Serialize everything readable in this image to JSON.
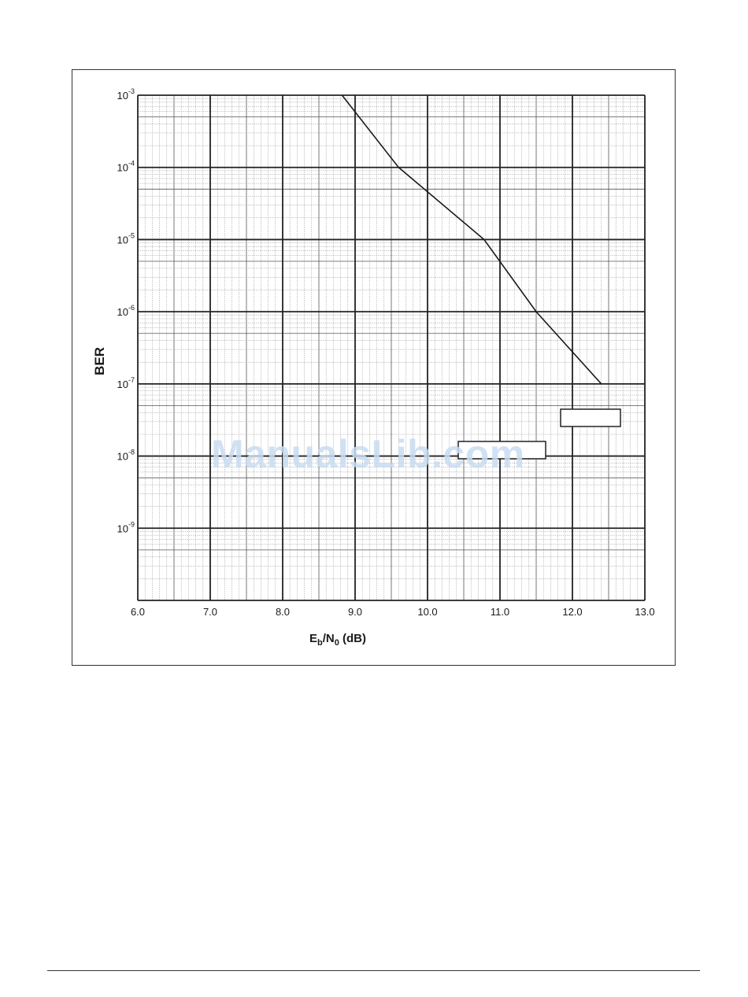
{
  "watermark": "ManualsLib.com",
  "chart_data": {
    "type": "line",
    "title": "",
    "xlabel": {
      "main": "E",
      "sub1": "b",
      "mid": "/N",
      "sub2": "0",
      "tail": " (dB)"
    },
    "ylabel": "BER",
    "xlim": [
      6.0,
      13.0
    ],
    "ylim": [
      1e-10,
      0.001
    ],
    "yscale": "log",
    "grid": true,
    "x_ticks": [
      "6.0",
      "7.0",
      "8.0",
      "9.0",
      "10.0",
      "11.0",
      "12.0",
      "13.0"
    ],
    "y_ticks": [
      {
        "base": "10",
        "exp": "-3"
      },
      {
        "base": "10",
        "exp": "-4"
      },
      {
        "base": "10",
        "exp": "-5"
      },
      {
        "base": "10",
        "exp": "-6"
      },
      {
        "base": "10",
        "exp": "-7"
      },
      {
        "base": "10",
        "exp": "-8"
      },
      {
        "base": "10",
        "exp": "-9"
      }
    ],
    "series": [
      {
        "x": [
          8.82,
          9.6,
          10.78,
          11.5,
          12.4
        ],
        "y": [
          0.001,
          0.0001,
          1e-05,
          1e-06,
          1e-07
        ]
      }
    ]
  }
}
